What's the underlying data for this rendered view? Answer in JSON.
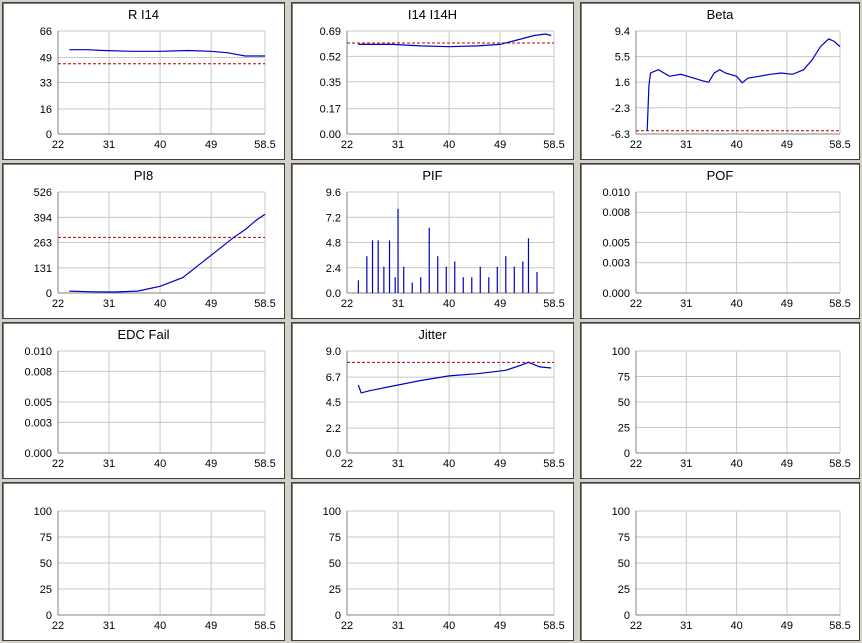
{
  "colors": {
    "series": "#0000c8",
    "threshold": "#b00000",
    "grid": "#c8c8c8",
    "axis": "#808080"
  },
  "chart_data": [
    {
      "type": "line",
      "title": "R I14",
      "xlim": [
        22,
        58.5
      ],
      "xticks": [
        22,
        31,
        40,
        49,
        58.5
      ],
      "ylim": [
        0,
        66
      ],
      "yticks": [
        0,
        16,
        33,
        49,
        66
      ],
      "threshold": 45,
      "series": [
        {
          "values": [
            [
              24,
              54
            ],
            [
              27,
              54
            ],
            [
              30,
              53.5
            ],
            [
              35,
              53
            ],
            [
              40,
              53
            ],
            [
              45,
              53.5
            ],
            [
              49,
              53
            ],
            [
              52,
              52
            ],
            [
              55,
              50
            ],
            [
              58.5,
              50
            ]
          ]
        }
      ]
    },
    {
      "type": "line",
      "title": "I14 I14H",
      "xlim": [
        22,
        58.5
      ],
      "xticks": [
        22,
        31,
        40,
        49,
        58.5
      ],
      "ylim": [
        0,
        0.69
      ],
      "yticks": [
        "0.00",
        "0.17",
        "0.35",
        "0.52",
        "0.69"
      ],
      "threshold": 0.61,
      "series": [
        {
          "values": [
            [
              24,
              0.6
            ],
            [
              30,
              0.6
            ],
            [
              35,
              0.59
            ],
            [
              40,
              0.585
            ],
            [
              45,
              0.59
            ],
            [
              49,
              0.6
            ],
            [
              52,
              0.63
            ],
            [
              55,
              0.66
            ],
            [
              57,
              0.67
            ],
            [
              58,
              0.66
            ]
          ]
        }
      ]
    },
    {
      "type": "line",
      "title": "Beta",
      "xlim": [
        22,
        58.5
      ],
      "xticks": [
        22,
        31,
        40,
        49,
        58.5
      ],
      "ylim": [
        -6.3,
        9.4
      ],
      "yticks": [
        "-6.3",
        "-2.3",
        "1.6",
        "5.5",
        "9.4"
      ],
      "threshold": -5.8,
      "series": [
        {
          "values": [
            [
              24,
              -5.8
            ],
            [
              24.3,
              1
            ],
            [
              24.6,
              3
            ],
            [
              26,
              3.5
            ],
            [
              28,
              2.5
            ],
            [
              30,
              2.8
            ],
            [
              32,
              2.3
            ],
            [
              34,
              1.8
            ],
            [
              35,
              1.6
            ],
            [
              36,
              3
            ],
            [
              37,
              3.5
            ],
            [
              38,
              3
            ],
            [
              40,
              2.5
            ],
            [
              41,
              1.5
            ],
            [
              42,
              2.2
            ],
            [
              44,
              2.5
            ],
            [
              46,
              2.8
            ],
            [
              48,
              3
            ],
            [
              50,
              2.8
            ],
            [
              52,
              3.5
            ],
            [
              53.5,
              5
            ],
            [
              55,
              7
            ],
            [
              56.5,
              8.2
            ],
            [
              57.5,
              7.8
            ],
            [
              58.5,
              7
            ]
          ]
        }
      ]
    },
    {
      "type": "line",
      "title": "PI8",
      "xlim": [
        22,
        58.5
      ],
      "xticks": [
        22,
        31,
        40,
        49,
        58.5
      ],
      "ylim": [
        0,
        526
      ],
      "yticks": [
        0,
        131,
        263,
        394,
        526
      ],
      "threshold": 290,
      "series": [
        {
          "values": [
            [
              24,
              10
            ],
            [
              28,
              6
            ],
            [
              32,
              5
            ],
            [
              36,
              10
            ],
            [
              40,
              35
            ],
            [
              44,
              80
            ],
            [
              47,
              150
            ],
            [
              50,
              220
            ],
            [
              53,
              290
            ],
            [
              55,
              330
            ],
            [
              57,
              380
            ],
            [
              58.5,
              410
            ]
          ]
        }
      ]
    },
    {
      "type": "bar",
      "title": "PIF",
      "xlim": [
        22,
        58.5
      ],
      "xticks": [
        22,
        31,
        40,
        49,
        58.5
      ],
      "ylim": [
        0,
        9.6
      ],
      "yticks": [
        "0.0",
        "2.4",
        "4.8",
        "7.2",
        "9.6"
      ],
      "x": [
        24,
        25.5,
        26.5,
        27.5,
        28.5,
        29.5,
        30.5,
        31,
        32,
        33.5,
        35,
        36.5,
        38,
        39.5,
        41,
        42.5,
        44,
        45.5,
        47,
        48.5,
        50,
        51.5,
        53,
        54,
        55.5
      ],
      "values": [
        1.2,
        3.5,
        5,
        5,
        2.5,
        5,
        1.5,
        8,
        2.5,
        1,
        1.5,
        6.2,
        3.5,
        2.5,
        3,
        1.5,
        1.5,
        2.5,
        1.5,
        2.5,
        3.5,
        2.5,
        3,
        5.2,
        2
      ]
    },
    {
      "type": "line",
      "title": "POF",
      "xlim": [
        22,
        58.5
      ],
      "xticks": [
        22,
        31,
        40,
        49,
        58.5
      ],
      "ylim": [
        0,
        0.01
      ],
      "yticks": [
        "0.000",
        "0.003",
        "0.005",
        "0.008",
        "0.010"
      ],
      "series": []
    },
    {
      "type": "line",
      "title": "EDC Fail",
      "xlim": [
        22,
        58.5
      ],
      "xticks": [
        22,
        31,
        40,
        49,
        58.5
      ],
      "ylim": [
        0,
        0.01
      ],
      "yticks": [
        "0.000",
        "0.003",
        "0.005",
        "0.008",
        "0.010"
      ],
      "series": []
    },
    {
      "type": "line",
      "title": "Jitter",
      "xlim": [
        22,
        58.5
      ],
      "xticks": [
        22,
        31,
        40,
        49,
        58.5
      ],
      "ylim": [
        0,
        9
      ],
      "yticks": [
        "0.0",
        "2.2",
        "4.5",
        "6.7",
        "9.0"
      ],
      "threshold": 8,
      "series": [
        {
          "values": [
            [
              24,
              6
            ],
            [
              24.5,
              5.3
            ],
            [
              26,
              5.5
            ],
            [
              30,
              5.9
            ],
            [
              35,
              6.4
            ],
            [
              40,
              6.8
            ],
            [
              45,
              7.0
            ],
            [
              50,
              7.3
            ],
            [
              53,
              7.8
            ],
            [
              54,
              8.0
            ],
            [
              56,
              7.6
            ],
            [
              58,
              7.5
            ]
          ]
        }
      ]
    },
    {
      "type": "line",
      "title": "",
      "xlim": [
        22,
        58.5
      ],
      "xticks": [
        22,
        31,
        40,
        49,
        58.5
      ],
      "ylim": [
        0,
        100
      ],
      "yticks": [
        0,
        25,
        50,
        75,
        100
      ],
      "series": []
    },
    {
      "type": "line",
      "title": "",
      "xlim": [
        22,
        58.5
      ],
      "xticks": [
        22,
        31,
        40,
        49,
        58.5
      ],
      "ylim": [
        0,
        100
      ],
      "yticks": [
        0,
        25,
        50,
        75,
        100
      ],
      "series": []
    },
    {
      "type": "line",
      "title": "",
      "xlim": [
        22,
        58.5
      ],
      "xticks": [
        22,
        31,
        40,
        49,
        58.5
      ],
      "ylim": [
        0,
        100
      ],
      "yticks": [
        0,
        25,
        50,
        75,
        100
      ],
      "series": []
    },
    {
      "type": "line",
      "title": "",
      "xlim": [
        22,
        58.5
      ],
      "xticks": [
        22,
        31,
        40,
        49,
        58.5
      ],
      "ylim": [
        0,
        100
      ],
      "yticks": [
        0,
        25,
        50,
        75,
        100
      ],
      "series": []
    }
  ]
}
